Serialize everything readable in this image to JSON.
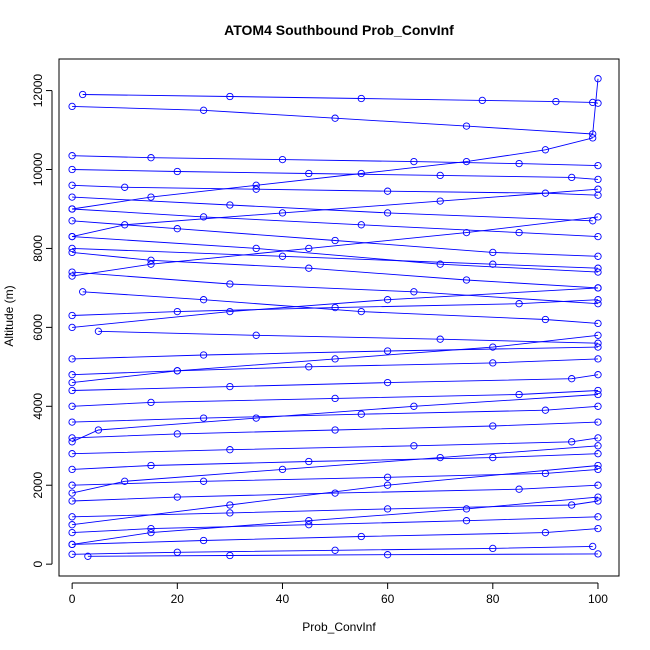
{
  "chart_data": {
    "type": "line",
    "title": "ATOM4 Southbound Prob_ConvInf",
    "xlabel": "Prob_ConvInf",
    "ylabel": "Altitude (m)",
    "xlim": [
      -2.5,
      104
    ],
    "ylim": [
      -300,
      12800
    ],
    "x_ticks": [
      0,
      20,
      40,
      60,
      80,
      100
    ],
    "y_ticks": [
      0,
      2000,
      4000,
      6000,
      8000,
      10000,
      12000
    ],
    "series_color": "#0000ff",
    "marker": "open-circle",
    "grid": false,
    "legend": "none",
    "series": [
      {
        "x": [
          2,
          30,
          55,
          78,
          92,
          99,
          100
        ],
        "y": [
          11900,
          11850,
          11800,
          11750,
          11720,
          11700,
          11680
        ]
      },
      {
        "x": [
          0,
          25,
          50,
          75,
          99,
          100
        ],
        "y": [
          11600,
          11500,
          11300,
          11100,
          10900,
          12300
        ]
      },
      {
        "x": [
          0,
          15,
          40,
          65,
          85,
          100
        ],
        "y": [
          10350,
          10300,
          10250,
          10200,
          10150,
          10100
        ]
      },
      {
        "x": [
          0,
          20,
          45,
          70,
          95,
          100
        ],
        "y": [
          10000,
          9950,
          9900,
          9850,
          9800,
          9750
        ]
      },
      {
        "x": [
          0,
          10,
          35,
          60,
          90,
          100
        ],
        "y": [
          9600,
          9550,
          9500,
          9450,
          9400,
          9350
        ]
      },
      {
        "x": [
          0,
          30,
          60,
          99
        ],
        "y": [
          9300,
          9100,
          8900,
          8700
        ]
      },
      {
        "x": [
          0,
          25,
          55,
          85,
          100
        ],
        "y": [
          9000,
          8800,
          8600,
          8400,
          8300
        ]
      },
      {
        "x": [
          0,
          20,
          50,
          80,
          100
        ],
        "y": [
          8700,
          8500,
          8200,
          7900,
          7800
        ]
      },
      {
        "x": [
          0,
          35,
          70,
          100
        ],
        "y": [
          8300,
          8000,
          7600,
          7400
        ]
      },
      {
        "x": [
          0,
          15,
          45,
          75,
          100
        ],
        "y": [
          7900,
          7700,
          7500,
          7200,
          7000
        ]
      },
      {
        "x": [
          0,
          30,
          65,
          100
        ],
        "y": [
          7400,
          7100,
          6900,
          6600
        ]
      },
      {
        "x": [
          2,
          25,
          55,
          90,
          100
        ],
        "y": [
          6900,
          6700,
          6400,
          6200,
          6100
        ]
      },
      {
        "x": [
          0,
          20,
          50,
          85,
          100
        ],
        "y": [
          6300,
          6400,
          6500,
          6600,
          6700
        ]
      },
      {
        "x": [
          5,
          35,
          70,
          100
        ],
        "y": [
          5900,
          5800,
          5700,
          5600
        ]
      },
      {
        "x": [
          0,
          25,
          60,
          100
        ],
        "y": [
          5200,
          5300,
          5400,
          5500
        ]
      },
      {
        "x": [
          0,
          20,
          45,
          80,
          100
        ],
        "y": [
          4800,
          4900,
          5000,
          5100,
          5200
        ]
      },
      {
        "x": [
          0,
          30,
          60,
          95,
          100
        ],
        "y": [
          4400,
          4500,
          4600,
          4700,
          4800
        ]
      },
      {
        "x": [
          0,
          15,
          50,
          85,
          100
        ],
        "y": [
          4000,
          4100,
          4200,
          4300,
          4400
        ]
      },
      {
        "x": [
          0,
          25,
          55,
          90,
          100
        ],
        "y": [
          3600,
          3700,
          3800,
          3900,
          4000
        ]
      },
      {
        "x": [
          0,
          20,
          50,
          80,
          100
        ],
        "y": [
          3200,
          3300,
          3400,
          3500,
          3600
        ]
      },
      {
        "x": [
          0,
          30,
          65,
          95,
          100
        ],
        "y": [
          2800,
          2900,
          3000,
          3100,
          3200
        ]
      },
      {
        "x": [
          0,
          15,
          45,
          80,
          100
        ],
        "y": [
          2400,
          2500,
          2600,
          2700,
          2800
        ]
      },
      {
        "x": [
          0,
          25,
          60,
          90,
          100
        ],
        "y": [
          2000,
          2100,
          2200,
          2300,
          2400
        ]
      },
      {
        "x": [
          0,
          20,
          50,
          85,
          100
        ],
        "y": [
          1600,
          1700,
          1800,
          1900,
          2000
        ]
      },
      {
        "x": [
          0,
          30,
          60,
          95,
          100
        ],
        "y": [
          1200,
          1300,
          1400,
          1500,
          1600
        ]
      },
      {
        "x": [
          0,
          15,
          45,
          75,
          100
        ],
        "y": [
          800,
          900,
          1000,
          1100,
          1200
        ]
      },
      {
        "x": [
          0,
          25,
          55,
          90,
          100
        ],
        "y": [
          500,
          600,
          700,
          800,
          900
        ]
      },
      {
        "x": [
          0,
          20,
          50,
          80,
          99
        ],
        "y": [
          250,
          300,
          350,
          400,
          450
        ]
      },
      {
        "x": [
          3,
          30,
          60,
          100
        ],
        "y": [
          200,
          220,
          240,
          260
        ]
      },
      {
        "x": [
          100,
          70,
          40,
          10,
          0
        ],
        "y": [
          9500,
          9200,
          8900,
          8600,
          8300
        ]
      },
      {
        "x": [
          100,
          75,
          45,
          15,
          0
        ],
        "y": [
          8800,
          8400,
          8000,
          7600,
          7300
        ]
      },
      {
        "x": [
          100,
          60,
          30,
          0
        ],
        "y": [
          7000,
          6700,
          6400,
          6000
        ]
      },
      {
        "x": [
          100,
          80,
          50,
          20,
          0
        ],
        "y": [
          5800,
          5500,
          5200,
          4900,
          4600
        ]
      },
      {
        "x": [
          100,
          65,
          35,
          5,
          0
        ],
        "y": [
          4300,
          4000,
          3700,
          3400,
          3100
        ]
      },
      {
        "x": [
          100,
          70,
          40,
          10,
          0
        ],
        "y": [
          3000,
          2700,
          2400,
          2100,
          1800
        ]
      },
      {
        "x": [
          100,
          75,
          45,
          15,
          0
        ],
        "y": [
          1700,
          1400,
          1100,
          800,
          500
        ]
      },
      {
        "x": [
          100,
          60,
          30,
          0
        ],
        "y": [
          2500,
          2000,
          1500,
          1000
        ]
      },
      {
        "x": [
          99,
          90,
          75,
          55,
          35,
          15,
          0
        ],
        "y": [
          10800,
          10500,
          10200,
          9900,
          9600,
          9300,
          9000
        ]
      },
      {
        "x": [
          0,
          40,
          80,
          100
        ],
        "y": [
          8000,
          7800,
          7600,
          7500
        ]
      }
    ]
  }
}
